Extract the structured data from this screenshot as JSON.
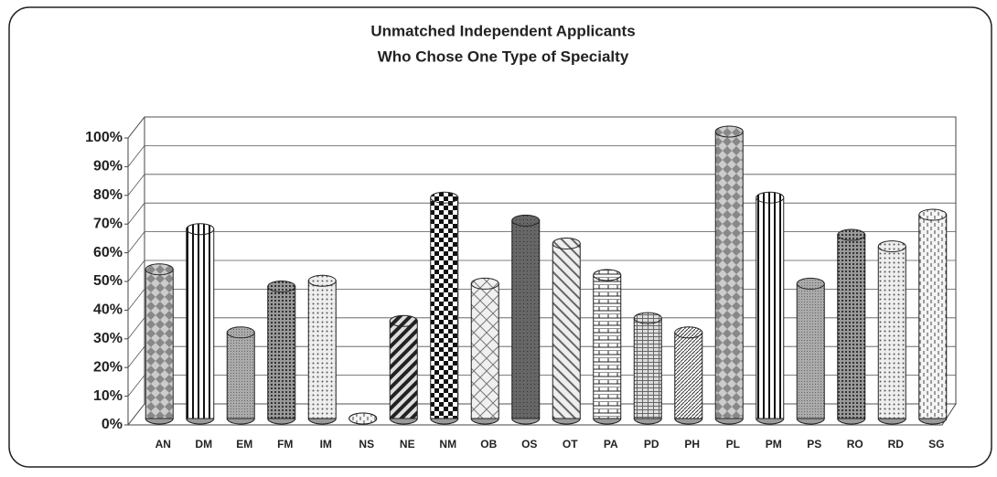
{
  "chart_data": {
    "type": "bar",
    "title": "Unmatched Independent Applicants",
    "subtitle": "Who Chose One Type of Specialty",
    "categories": [
      "AN",
      "DM",
      "EM",
      "FM",
      "IM",
      "NS",
      "NE",
      "NM",
      "OB",
      "OS",
      "OT",
      "PA",
      "PD",
      "PH",
      "PL",
      "PM",
      "PS",
      "RO",
      "RD",
      "SG"
    ],
    "values": [
      52,
      66,
      30,
      46,
      48,
      0,
      34,
      77,
      47,
      69,
      61,
      50,
      35,
      30,
      100,
      77,
      47,
      64,
      60,
      71
    ],
    "color": "#9a9a9a",
    "ylim": [
      0,
      100
    ],
    "yticks": [
      {
        "value": 0,
        "label": "0%"
      },
      {
        "value": 10,
        "label": "10%"
      },
      {
        "value": 20,
        "label": "20%"
      },
      {
        "value": 30,
        "label": "30%"
      },
      {
        "value": 40,
        "label": "40%"
      },
      {
        "value": 50,
        "label": "50%"
      },
      {
        "value": 60,
        "label": "60%"
      },
      {
        "value": 70,
        "label": "70%"
      },
      {
        "value": 80,
        "label": "80%"
      },
      {
        "value": 90,
        "label": "90%"
      },
      {
        "value": 100,
        "label": "100%"
      }
    ],
    "grid": true
  }
}
